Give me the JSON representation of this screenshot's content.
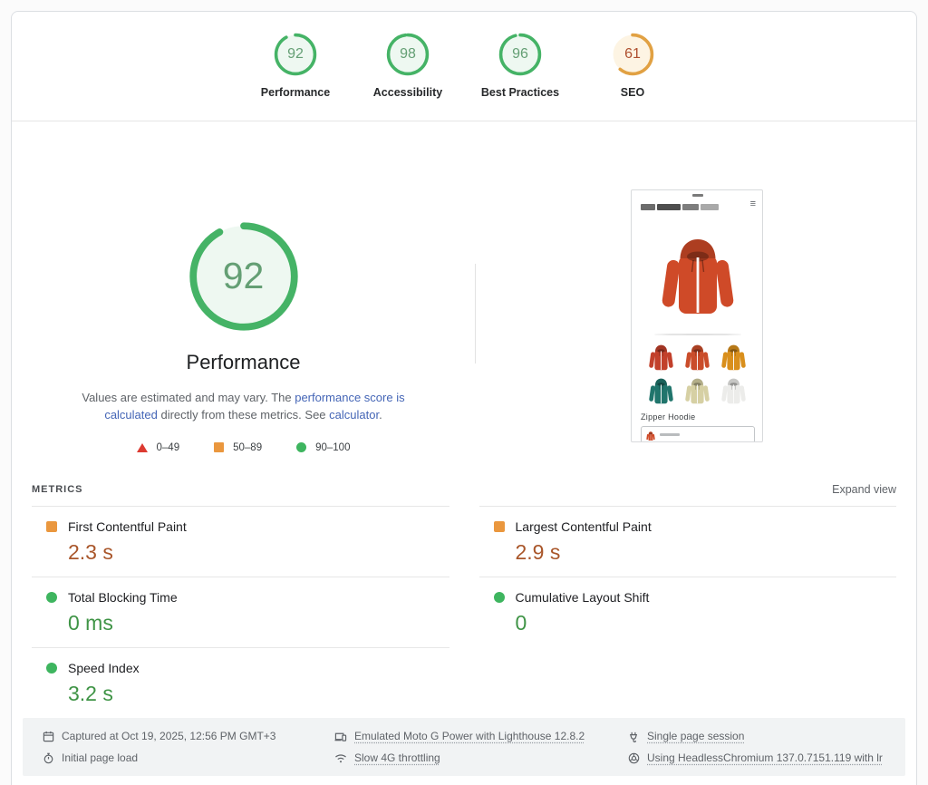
{
  "colors": {
    "c-good": "#45b366",
    "c-good-fill": "#eef8f1",
    "c-good-num": "#649f74",
    "c-avg": "#e1a143",
    "c-avg-fill": "#fdf4e3",
    "c-avg-num": "#ae4f2e",
    "c-fail": "#dc3a31",
    "c-marker-good": "#3eb55f",
    "c-marker-avg": "#ea973e",
    "c-val-good": "#3f9446",
    "c-val-avg": "#a9562a",
    "c-link": "#4465b6"
  },
  "header": {
    "scores": [
      {
        "label": "Performance",
        "value": 92,
        "level": "good"
      },
      {
        "label": "Accessibility",
        "value": 98,
        "level": "good"
      },
      {
        "label": "Best Practices",
        "value": 96,
        "level": "good"
      },
      {
        "label": "SEO",
        "value": 61,
        "level": "average"
      }
    ]
  },
  "main": {
    "gauge": {
      "value": 92,
      "label": "Performance",
      "level": "good"
    },
    "description": {
      "text_1": "Values are estimated and may vary. The ",
      "link_1": "performance score is calculated",
      "text_2": " directly from these metrics. See ",
      "link_2": "calculator",
      "text_3": "."
    },
    "legend": [
      {
        "label": "0–49",
        "level": "fail"
      },
      {
        "label": "50–89",
        "level": "average"
      },
      {
        "label": "90–100",
        "level": "good"
      }
    ],
    "screenshot": {
      "product_name": "Zipper Hoodie",
      "hoodie_color": "#cf4a28",
      "swatches": [
        "#c2402b",
        "#ca4d2b",
        "#d98f1c",
        "#20756c",
        "#d6d0a4",
        "#ececea"
      ]
    }
  },
  "metrics": {
    "title": "METRICS",
    "expand_label": "Expand view",
    "items": [
      {
        "name": "First Contentful Paint",
        "value": "2.3 s",
        "level": "average"
      },
      {
        "name": "Largest Contentful Paint",
        "value": "2.9 s",
        "level": "average"
      },
      {
        "name": "Total Blocking Time",
        "value": "0 ms",
        "level": "good"
      },
      {
        "name": "Cumulative Layout Shift",
        "value": "0",
        "level": "good"
      },
      {
        "name": "Speed Index",
        "value": "3.2 s",
        "level": "good"
      }
    ]
  },
  "footer": {
    "items": [
      {
        "icon": "calendar-icon",
        "text": "Captured at Oct 19, 2025, 12:56 PM GMT+3"
      },
      {
        "icon": "stopwatch-icon",
        "text": "Initial page load"
      },
      {
        "icon": "emulated-device-icon",
        "text": "Emulated Moto G Power with Lighthouse 12.8.2"
      },
      {
        "icon": "network-throttle-icon",
        "text": "Slow 4G throttling"
      },
      {
        "icon": "plug-icon",
        "text": "Single page session"
      },
      {
        "icon": "chromium-icon",
        "text": "Using HeadlessChromium 137.0.7151.119 with lr"
      }
    ]
  }
}
